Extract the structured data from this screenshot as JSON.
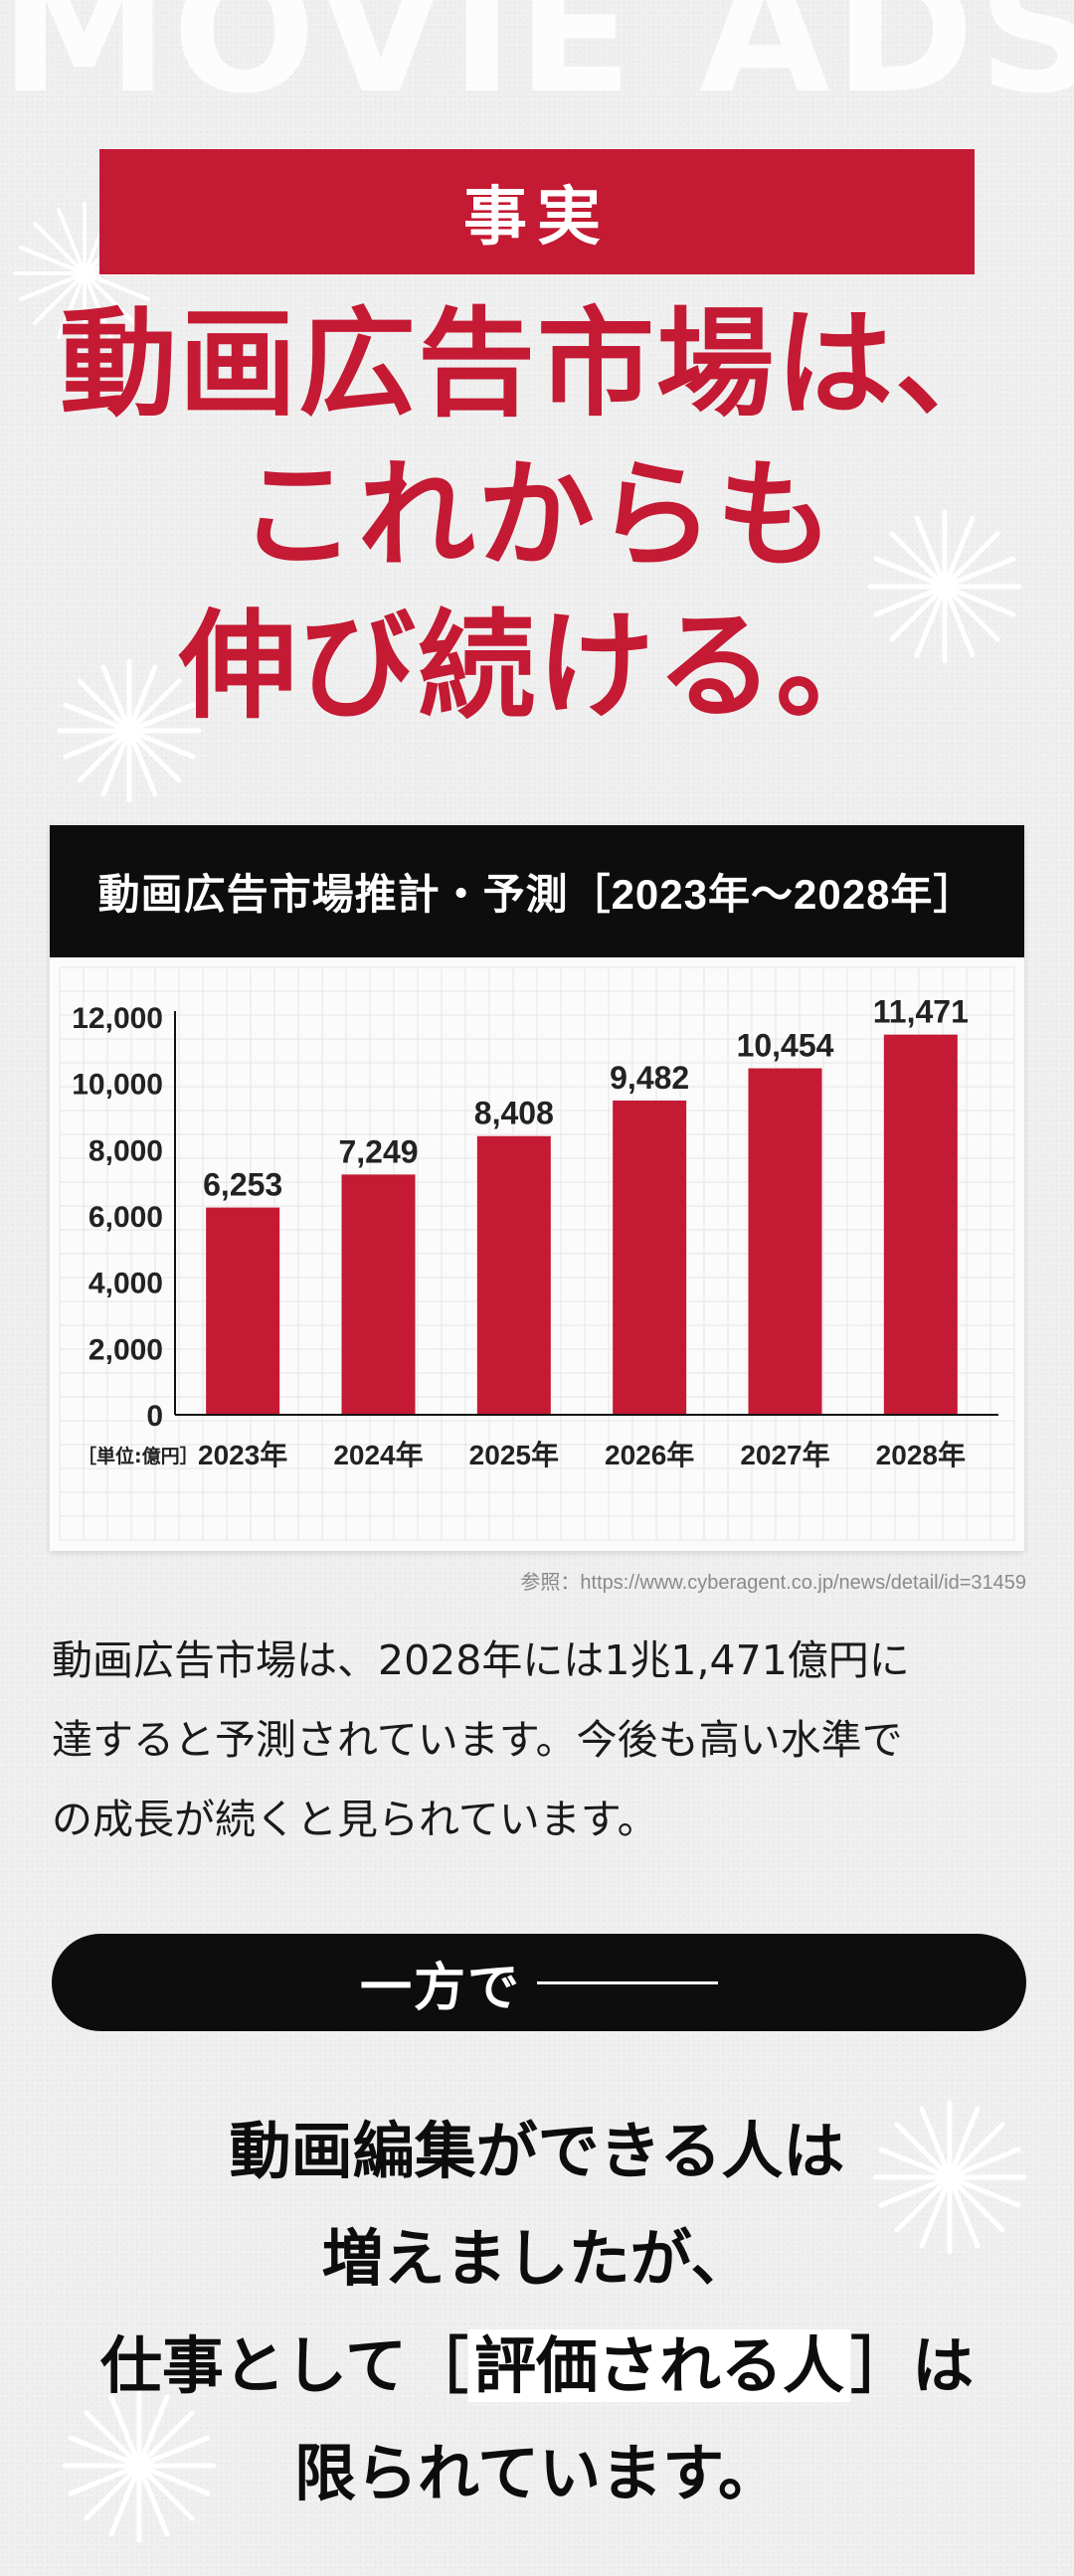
{
  "background_word": "MOVIE ADS",
  "fact_label": "事実",
  "headline": [
    "動画広告市場は、",
    "これからも",
    "伸び続ける。"
  ],
  "chart_title": "動画広告市場推計・予測［2023年〜2028年］",
  "chart_data": {
    "type": "bar",
    "title": "動画広告市場推計・予測［2023年〜2028年］",
    "categories": [
      "2023年",
      "2024年",
      "2025年",
      "2026年",
      "2027年",
      "2028年"
    ],
    "values": [
      6253,
      7249,
      8408,
      9482,
      10454,
      11471
    ],
    "value_labels": [
      "6,253",
      "7,249",
      "8,408",
      "9,482",
      "10,454",
      "11,471"
    ],
    "y_ticks": [
      0,
      2000,
      4000,
      6000,
      8000,
      10000,
      12000
    ],
    "y_tick_labels": [
      "0",
      "2,000",
      "4,000",
      "6,000",
      "8,000",
      "10,000",
      "12,000"
    ],
    "ylim": [
      0,
      12000
    ],
    "unit_label": "［単位:億円］",
    "bar_color": "#c41a33",
    "grid": true
  },
  "source_text": "参照：https://www.cyberagent.co.jp/news/detail/id=31459",
  "body_lines": [
    "動画広告市場は、2028年には1兆1,471億円に",
    "達すると予測されています。今後も高い水準で",
    "の成長が続くと見られています。"
  ],
  "pill_label": "一方で",
  "closing": {
    "line1": "動画編集ができる人は",
    "line2": "増えましたが、",
    "line3_pre": "仕事として［",
    "line3_hl": "評価される人",
    "line3_post": "］は",
    "line4": "限られています。"
  },
  "colors": {
    "accent": "#c41a33",
    "dark": "#0d0d0d",
    "background": "#f0f0f0"
  }
}
